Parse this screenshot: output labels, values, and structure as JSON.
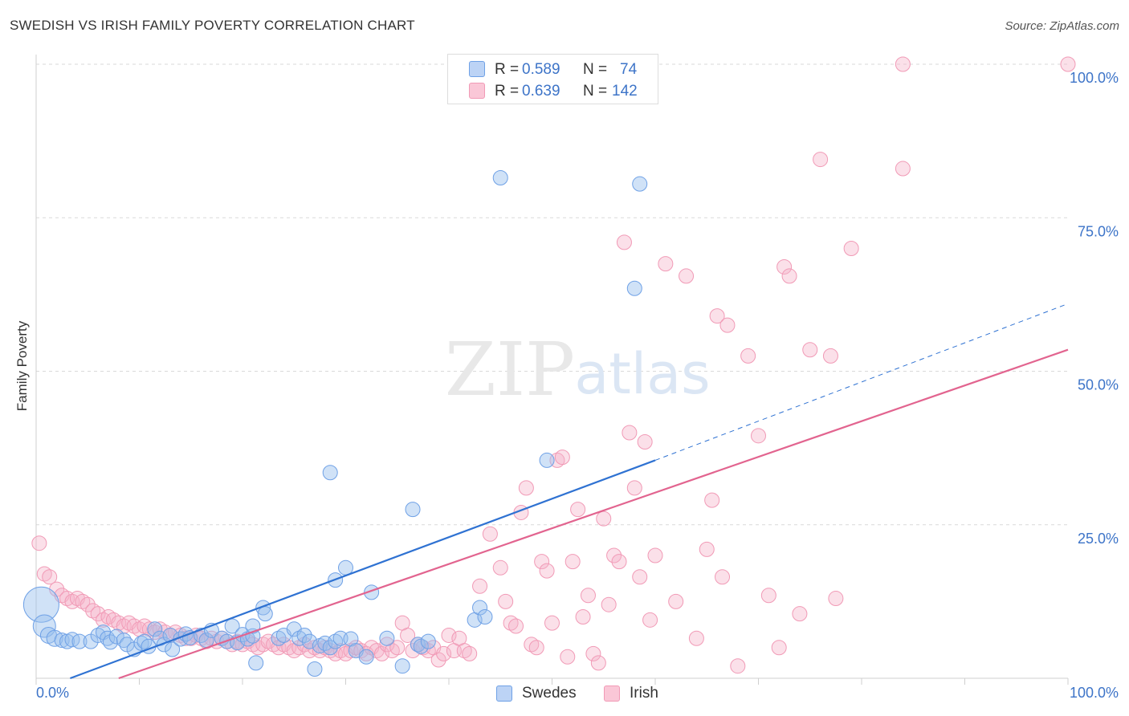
{
  "title": "SWEDISH VS IRISH FAMILY POVERTY CORRELATION CHART",
  "source": "Source: ZipAtlas.com",
  "watermark": {
    "zip": "ZIP",
    "atlas": "atlas"
  },
  "legend_top": [
    {
      "r_label": "R =",
      "r_value": "0.589",
      "n_label": "N =",
      "n_value": "74"
    },
    {
      "r_label": "R =",
      "r_value": "0.639",
      "n_label": "N =",
      "n_value": "142"
    }
  ],
  "chart_data": {
    "type": "scatter",
    "title": "SWEDISH VS IRISH FAMILY POVERTY CORRELATION CHART",
    "xlabel": "",
    "ylabel": "Family Poverty",
    "xlim": [
      0,
      100
    ],
    "ylim": [
      0,
      100
    ],
    "x_tick_labels": [
      "0.0%",
      "100.0%"
    ],
    "y_tick_labels": [
      "25.0%",
      "50.0%",
      "75.0%",
      "100.0%"
    ],
    "y_ticks": [
      25,
      50,
      75,
      100
    ],
    "grid": "horizontal dashed",
    "legend": "bottom-center",
    "colors": {
      "swedes": "#6fa1e6",
      "irish": "#f19ab6",
      "swedes_line": "#2f72d2",
      "irish_line": "#e2648f"
    },
    "series": [
      {
        "name": "Swedes",
        "r": 0.589,
        "n": 74,
        "trend": {
          "x0": 3.3,
          "y0": 0,
          "x1": 60,
          "y1": 35.5,
          "dash_x1": 100,
          "dash_y1": 61
        },
        "points": [
          [
            0.5,
            12,
            22
          ],
          [
            0.8,
            8.5,
            14
          ],
          [
            1.2,
            7,
            10
          ],
          [
            1.8,
            6.5,
            10
          ],
          [
            2.5,
            6.2,
            9
          ],
          [
            3,
            6,
            9
          ],
          [
            3.5,
            6.3,
            9
          ],
          [
            4.2,
            6,
            9
          ],
          [
            5.3,
            6,
            9
          ],
          [
            6,
            7,
            9
          ],
          [
            6.5,
            7.5,
            9
          ],
          [
            6.9,
            6.5,
            9
          ],
          [
            7.2,
            5.9,
            9
          ],
          [
            7.8,
            6.8,
            9
          ],
          [
            8.5,
            6.2,
            9
          ],
          [
            8.8,
            5.5,
            9
          ],
          [
            9.5,
            4.7,
            9
          ],
          [
            10.2,
            5.7,
            9
          ],
          [
            10.5,
            6,
            9
          ],
          [
            10.9,
            5.2,
            9
          ],
          [
            11.5,
            8,
            9
          ],
          [
            12,
            6.5,
            9
          ],
          [
            12.4,
            5.5,
            9
          ],
          [
            13,
            7,
            9
          ],
          [
            13.2,
            4.7,
            9
          ],
          [
            14,
            6.4,
            9
          ],
          [
            14.5,
            7.2,
            9
          ],
          [
            14.9,
            6.6,
            9
          ],
          [
            16,
            7,
            9
          ],
          [
            16.5,
            6.2,
            9
          ],
          [
            17,
            7.8,
            9
          ],
          [
            18,
            6.5,
            9
          ],
          [
            18.5,
            6,
            9
          ],
          [
            19,
            8.5,
            9
          ],
          [
            19.5,
            5.8,
            9
          ],
          [
            20,
            7.1,
            9
          ],
          [
            20.5,
            6.4,
            9
          ],
          [
            21,
            6.9,
            9
          ],
          [
            21.3,
            2.5,
            9
          ],
          [
            22,
            11.5,
            9
          ],
          [
            22.2,
            10.5,
            9
          ],
          [
            23.5,
            6.5,
            9
          ],
          [
            24,
            7,
            9
          ],
          [
            25,
            8,
            9
          ],
          [
            25.5,
            6.5,
            9
          ],
          [
            26,
            7,
            9
          ],
          [
            26.5,
            6,
            9
          ],
          [
            27,
            1.5,
            9
          ],
          [
            27.5,
            5.3,
            9
          ],
          [
            28,
            5.7,
            9
          ],
          [
            28.5,
            5,
            9
          ],
          [
            29,
            6,
            9
          ],
          [
            29.5,
            6.5,
            9
          ],
          [
            30.5,
            6.4,
            9
          ],
          [
            31,
            4.5,
            9
          ],
          [
            32,
            3.5,
            9
          ],
          [
            32.5,
            14,
            9
          ],
          [
            34,
            6.5,
            9
          ],
          [
            35.5,
            2,
            9
          ],
          [
            37,
            5.5,
            9
          ],
          [
            37.3,
            5.2,
            9
          ],
          [
            38,
            6,
            9
          ],
          [
            42.5,
            9.5,
            9
          ],
          [
            43,
            11.5,
            9
          ],
          [
            43.5,
            10,
            9
          ],
          [
            45,
            81.5,
            9
          ],
          [
            49.5,
            35.5,
            9
          ],
          [
            58,
            63.5,
            9
          ],
          [
            58.5,
            80.5,
            9
          ],
          [
            28.5,
            33.5,
            9
          ],
          [
            21,
            8.5,
            9
          ],
          [
            36.5,
            27.5,
            9
          ],
          [
            30,
            18,
            9
          ],
          [
            29,
            16,
            9
          ]
        ]
      },
      {
        "name": "Irish",
        "r": 0.639,
        "n": 142,
        "trend": {
          "x0": 8,
          "y0": 0,
          "x1": 100,
          "y1": 53.5
        },
        "points": [
          [
            0.3,
            22,
            9
          ],
          [
            0.8,
            17,
            9
          ],
          [
            1.3,
            16.5,
            9
          ],
          [
            2,
            14.5,
            9
          ],
          [
            2.5,
            13.5,
            9
          ],
          [
            3,
            13,
            9
          ],
          [
            3.5,
            12.5,
            9
          ],
          [
            4,
            13,
            9
          ],
          [
            4.5,
            12.5,
            9
          ],
          [
            5,
            12,
            9
          ],
          [
            5.5,
            11,
            9
          ],
          [
            6,
            10.5,
            9
          ],
          [
            6.5,
            9.5,
            9
          ],
          [
            7,
            10,
            9
          ],
          [
            7.5,
            9.5,
            9
          ],
          [
            8,
            9,
            9
          ],
          [
            8.5,
            8.5,
            9
          ],
          [
            9,
            9,
            9
          ],
          [
            9.5,
            8.5,
            9
          ],
          [
            10,
            8,
            9
          ],
          [
            10.5,
            8.5,
            9
          ],
          [
            11,
            8,
            9
          ],
          [
            11.5,
            7.5,
            9
          ],
          [
            12,
            8,
            9
          ],
          [
            12.5,
            7.5,
            9
          ],
          [
            13,
            7,
            9
          ],
          [
            13.5,
            7.5,
            9
          ],
          [
            14,
            7,
            9
          ],
          [
            14.5,
            6.5,
            9
          ],
          [
            15,
            6.5,
            9
          ],
          [
            15.5,
            7,
            9
          ],
          [
            16,
            6.5,
            9
          ],
          [
            16.5,
            6,
            9
          ],
          [
            17,
            6.5,
            9
          ],
          [
            17.5,
            6,
            9
          ],
          [
            18,
            6.5,
            9
          ],
          [
            18.5,
            6,
            9
          ],
          [
            19,
            5.5,
            9
          ],
          [
            19.5,
            6,
            9
          ],
          [
            20,
            5.5,
            9
          ],
          [
            20.5,
            6,
            9
          ],
          [
            21,
            5.5,
            9
          ],
          [
            21.5,
            5,
            9
          ],
          [
            22,
            5.5,
            9
          ],
          [
            22.5,
            6,
            9
          ],
          [
            23,
            5.5,
            9
          ],
          [
            23.5,
            5,
            9
          ],
          [
            24,
            5.5,
            9
          ],
          [
            24.5,
            5,
            9
          ],
          [
            25,
            4.5,
            9
          ],
          [
            25.5,
            5,
            9
          ],
          [
            26,
            5.5,
            9
          ],
          [
            26.5,
            4.5,
            9
          ],
          [
            27,
            5,
            9
          ],
          [
            27.5,
            4.5,
            9
          ],
          [
            28,
            5,
            9
          ],
          [
            28.5,
            4.5,
            9
          ],
          [
            29,
            4,
            9
          ],
          [
            29.5,
            4.5,
            9
          ],
          [
            30,
            4,
            9
          ],
          [
            30.5,
            4.5,
            9
          ],
          [
            31,
            5,
            9
          ],
          [
            31.5,
            4.5,
            9
          ],
          [
            32,
            4,
            9
          ],
          [
            32.5,
            5,
            9
          ],
          [
            33,
            4.5,
            9
          ],
          [
            33.5,
            4,
            9
          ],
          [
            34,
            5.5,
            9
          ],
          [
            34.5,
            4.5,
            9
          ],
          [
            35,
            5,
            9
          ],
          [
            35.5,
            9,
            9
          ],
          [
            36,
            7,
            9
          ],
          [
            36.5,
            4.5,
            9
          ],
          [
            37,
            5.5,
            9
          ],
          [
            37.5,
            5,
            9
          ],
          [
            38,
            4.5,
            9
          ],
          [
            38.5,
            5,
            9
          ],
          [
            39,
            3,
            9
          ],
          [
            39.5,
            4,
            9
          ],
          [
            40,
            7,
            9
          ],
          [
            40.5,
            4.5,
            9
          ],
          [
            41,
            6.5,
            9
          ],
          [
            41.5,
            4.5,
            9
          ],
          [
            42,
            4,
            9
          ],
          [
            43,
            15,
            9
          ],
          [
            44,
            23.5,
            9
          ],
          [
            45,
            18,
            9
          ],
          [
            45.5,
            12.5,
            9
          ],
          [
            46,
            9,
            9
          ],
          [
            46.5,
            8.5,
            9
          ],
          [
            47,
            27,
            9
          ],
          [
            47.5,
            31,
            9
          ],
          [
            48,
            5.5,
            9
          ],
          [
            48.5,
            5,
            9
          ],
          [
            49,
            19,
            9
          ],
          [
            49.5,
            17.5,
            9
          ],
          [
            50,
            9,
            9
          ],
          [
            50.5,
            35.5,
            9
          ],
          [
            51,
            36,
            9
          ],
          [
            51.5,
            3.5,
            9
          ],
          [
            52,
            19,
            9
          ],
          [
            52.5,
            27.5,
            9
          ],
          [
            53,
            10,
            9
          ],
          [
            53.5,
            13.5,
            9
          ],
          [
            54,
            4,
            9
          ],
          [
            54.5,
            2.5,
            9
          ],
          [
            55,
            26,
            9
          ],
          [
            55.5,
            12,
            9
          ],
          [
            56,
            20,
            9
          ],
          [
            56.5,
            19,
            9
          ],
          [
            57,
            71,
            9
          ],
          [
            57.5,
            40,
            9
          ],
          [
            58,
            31,
            9
          ],
          [
            58.5,
            16.5,
            9
          ],
          [
            59,
            38.5,
            9
          ],
          [
            59.5,
            9.5,
            9
          ],
          [
            60,
            20,
            9
          ],
          [
            61,
            67.5,
            9
          ],
          [
            62,
            12.5,
            9
          ],
          [
            63,
            65.5,
            9
          ],
          [
            64,
            6.5,
            9
          ],
          [
            65,
            21,
            9
          ],
          [
            65.5,
            29,
            9
          ],
          [
            66,
            59,
            9
          ],
          [
            66.5,
            16.5,
            9
          ],
          [
            67,
            57.5,
            9
          ],
          [
            68,
            2,
            9
          ],
          [
            69,
            52.5,
            9
          ],
          [
            70,
            39.5,
            9
          ],
          [
            71,
            13.5,
            9
          ],
          [
            72,
            5,
            9
          ],
          [
            72.5,
            67,
            9
          ],
          [
            73,
            65.5,
            9
          ],
          [
            74,
            10.5,
            9
          ],
          [
            75,
            53.5,
            9
          ],
          [
            76,
            84.5,
            9
          ],
          [
            77,
            52.5,
            9
          ],
          [
            77.5,
            13,
            9
          ],
          [
            79,
            70,
            9
          ],
          [
            84,
            100,
            9
          ],
          [
            84,
            83,
            9
          ],
          [
            100,
            100,
            9
          ]
        ]
      }
    ]
  }
}
